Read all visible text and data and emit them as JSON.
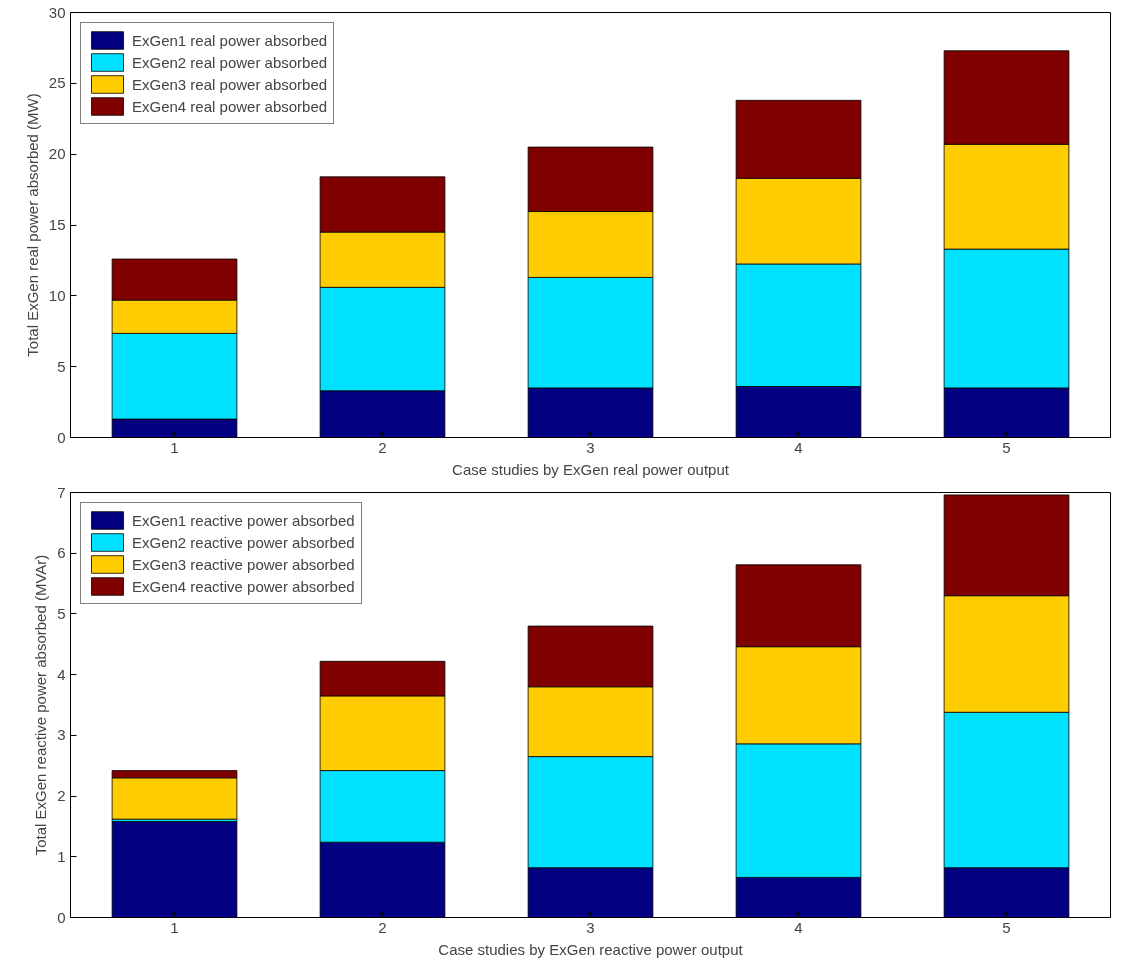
{
  "chart_data": [
    {
      "type": "bar",
      "stacked": true,
      "xlabel": "Case studies by ExGen real power output",
      "ylabel": "Total ExGen real power absorbed (MW)",
      "categories": [
        "1",
        "2",
        "3",
        "4",
        "5"
      ],
      "ylim": [
        0,
        30
      ],
      "yticks": [
        0,
        5,
        10,
        15,
        20,
        25,
        30
      ],
      "grid": false,
      "legend": "top left",
      "series": [
        {
          "name": "ExGen1 real power absorbed",
          "color": "#000080",
          "values": [
            1.3,
            3.3,
            3.5,
            3.6,
            3.5
          ]
        },
        {
          "name": "ExGen2 real power absorbed",
          "color": "#00e1ff",
          "values": [
            6.05,
            7.3,
            7.8,
            8.65,
            9.8
          ]
        },
        {
          "name": "ExGen3 real power absorbed",
          "color": "#ffcc00",
          "values": [
            2.35,
            3.9,
            4.65,
            6.05,
            7.4
          ]
        },
        {
          "name": "ExGen4 real power absorbed",
          "color": "#800000",
          "values": [
            2.9,
            3.9,
            4.55,
            5.5,
            6.6
          ]
        }
      ]
    },
    {
      "type": "bar",
      "stacked": true,
      "xlabel": "Case studies by ExGen reactive power output",
      "ylabel": "Total ExGen reactive power absorbed (MVAr)",
      "categories": [
        "1",
        "2",
        "3",
        "4",
        "5"
      ],
      "ylim": [
        0,
        7
      ],
      "yticks": [
        0,
        1,
        2,
        3,
        4,
        5,
        6,
        7
      ],
      "grid": false,
      "legend": "top left",
      "series": [
        {
          "name": "ExGen1 reactive power absorbed",
          "color": "#000080",
          "values": [
            1.58,
            1.24,
            0.82,
            0.66,
            0.82
          ]
        },
        {
          "name": "ExGen2 reactive power absorbed",
          "color": "#00e1ff",
          "values": [
            0.04,
            1.18,
            1.83,
            2.2,
            2.56
          ]
        },
        {
          "name": "ExGen3 reactive power absorbed",
          "color": "#ffcc00",
          "values": [
            0.68,
            1.23,
            1.15,
            1.6,
            1.92
          ]
        },
        {
          "name": "ExGen4 reactive power absorbed",
          "color": "#800000",
          "values": [
            0.12,
            0.57,
            1.0,
            1.35,
            1.66
          ]
        }
      ]
    }
  ]
}
